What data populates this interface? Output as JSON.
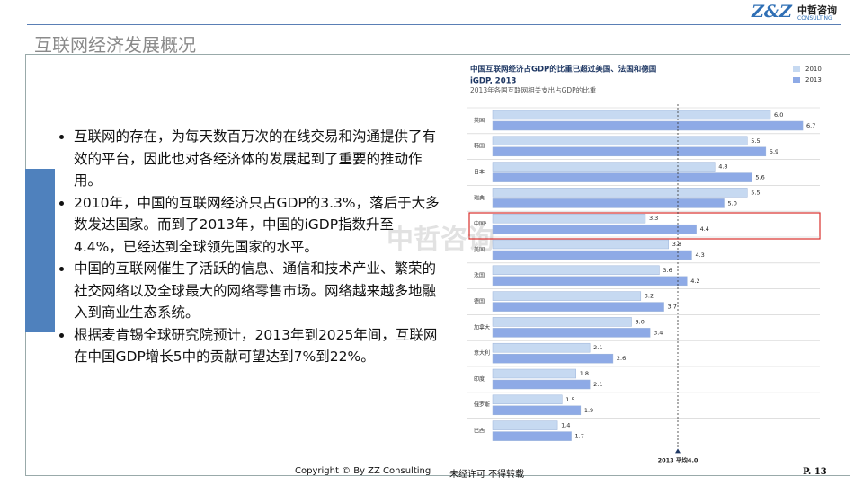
{
  "header": {
    "title": "互联网经济发展概况",
    "logo": "Z&Z",
    "logo_cn": "中哲咨询",
    "logo_en": "CONSULTING"
  },
  "bullets": [
    "互联网的存在，为每天数百万次的在线交易和沟通提供了有效的平台，因此也对各经济体的发展起到了重要的推动作用。",
    "2010年，中国的互联网经济只占GDP的3.3%，落后于大多数发达国家。而到了2013年，中国的iGDP指数升至4.4%，已经达到全球领先国家的水平。",
    "中国的互联网催生了活跃的信息、通信和技术产业、繁荣的社交网络以及全球最大的网络零售市场。网络越来越多地融入到商业生态系统。",
    "根据麦肯锡全球研究院预计，2013年到2025年间，互联网在中国GDP增长5中的贡献可望达到7%到22%。"
  ],
  "watermark": "中哲咨询",
  "chart_data": {
    "type": "hbar",
    "title": "中国互联网经济占GDP的比重已超过美国、法国和德国",
    "subtitle": "iGDP, 2013",
    "caption": "2013年各国互联网相关支出占GDP的比重",
    "categories": [
      "英国",
      "韩国",
      "日本",
      "瑞典",
      "中国¹",
      "美国",
      "法国",
      "德国",
      "加拿大",
      "意大利",
      "印度",
      "俄罗斯",
      "巴西"
    ],
    "series": [
      {
        "name": "2010",
        "color": "#c6d9f1",
        "values": [
          6.0,
          5.5,
          4.8,
          5.5,
          3.3,
          3.8,
          3.6,
          3.2,
          3.0,
          2.1,
          1.8,
          1.5,
          1.4
        ],
        "value_labels": [
          "6.0",
          "5.5",
          "4.8",
          "5.5",
          "3.3",
          "3.8",
          "3.6",
          "3.2",
          "3.0",
          "2.1",
          "1.8",
          "1.5",
          "1.4"
        ]
      },
      {
        "name": "2013",
        "color": "#8eaae6",
        "values": [
          6.7,
          5.9,
          5.6,
          5.0,
          4.4,
          4.3,
          4.2,
          3.7,
          3.4,
          2.6,
          2.1,
          1.9,
          1.7
        ],
        "value_labels": [
          "6.7",
          "5.9",
          "5.6",
          "5.0",
          "4.4",
          "4.3",
          "4.2",
          "3.7",
          "3.4",
          "2.6",
          "2.1",
          "1.9",
          "1.7"
        ]
      }
    ],
    "xlim": [
      0,
      7
    ],
    "reference": {
      "value": 4,
      "label": "2013 平均4.0"
    }
  },
  "footer": {
    "copyright": "Copyright © By  ZZ Consulting",
    "notice": "未经许可 不得转载",
    "page": "P. 13"
  }
}
